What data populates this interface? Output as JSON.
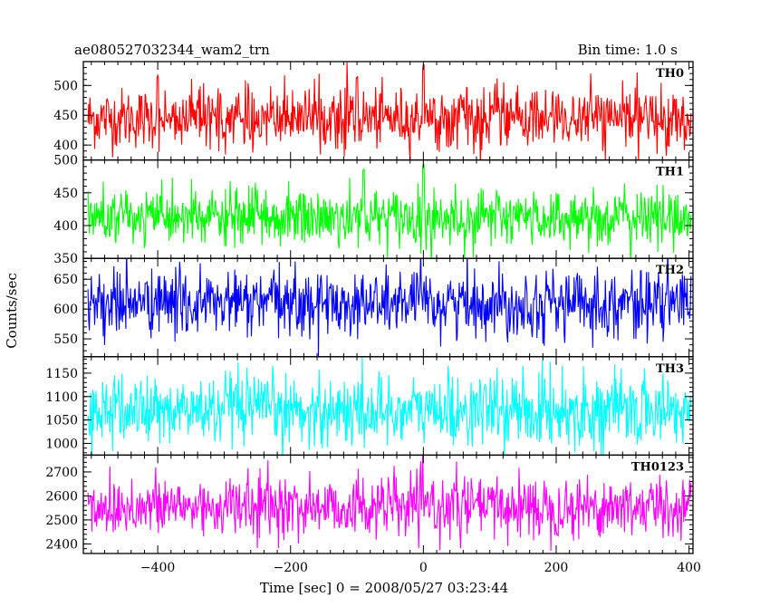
{
  "chart_data": {
    "type": "line",
    "title": "ae080527032344_wam2_trn",
    "subtitle": "Bin time: 1.0 s",
    "xlabel": "Time [sec] 0 = 2008/05/27 03:23:44",
    "ylabel": "Counts/sec",
    "xlim": [
      -512,
      406
    ],
    "x_ticks": [
      -400,
      -200,
      0,
      200,
      400
    ],
    "x_start": -505,
    "x_end": 403,
    "x_step": 1,
    "grid": false,
    "panels": [
      {
        "name": "TH0",
        "color": "#ff0000",
        "ylim": [
          375,
          540
        ],
        "y_ticks": [
          400,
          450,
          500
        ],
        "mean": 445,
        "std": 25,
        "events": [
          {
            "x": 0,
            "peak": 535
          },
          {
            "x": -400,
            "peak": 520
          },
          {
            "x": -100,
            "peak": 515
          }
        ]
      },
      {
        "name": "TH1",
        "color": "#00ff00",
        "ylim": [
          350,
          500
        ],
        "y_ticks": [
          350,
          400,
          450,
          500
        ],
        "mean": 412,
        "std": 22,
        "events": [
          {
            "x": 0,
            "peak": 495
          },
          {
            "x": -90,
            "peak": 490
          }
        ]
      },
      {
        "name": "TH2",
        "color": "#0000ff",
        "ylim": [
          520,
          685
        ],
        "y_ticks": [
          550,
          600,
          650
        ],
        "mean": 610,
        "std": 28,
        "events": []
      },
      {
        "name": "TH3",
        "color": "#00ffff",
        "ylim": [
          975,
          1185
        ],
        "y_ticks": [
          1000,
          1050,
          1100,
          1150
        ],
        "mean": 1070,
        "std": 38,
        "events": []
      },
      {
        "name": "TH0123",
        "color": "#ff00ff",
        "ylim": [
          2360,
          2770
        ],
        "y_ticks": [
          2400,
          2500,
          2600,
          2700
        ],
        "mean": 2555,
        "std": 65,
        "events": []
      }
    ]
  }
}
